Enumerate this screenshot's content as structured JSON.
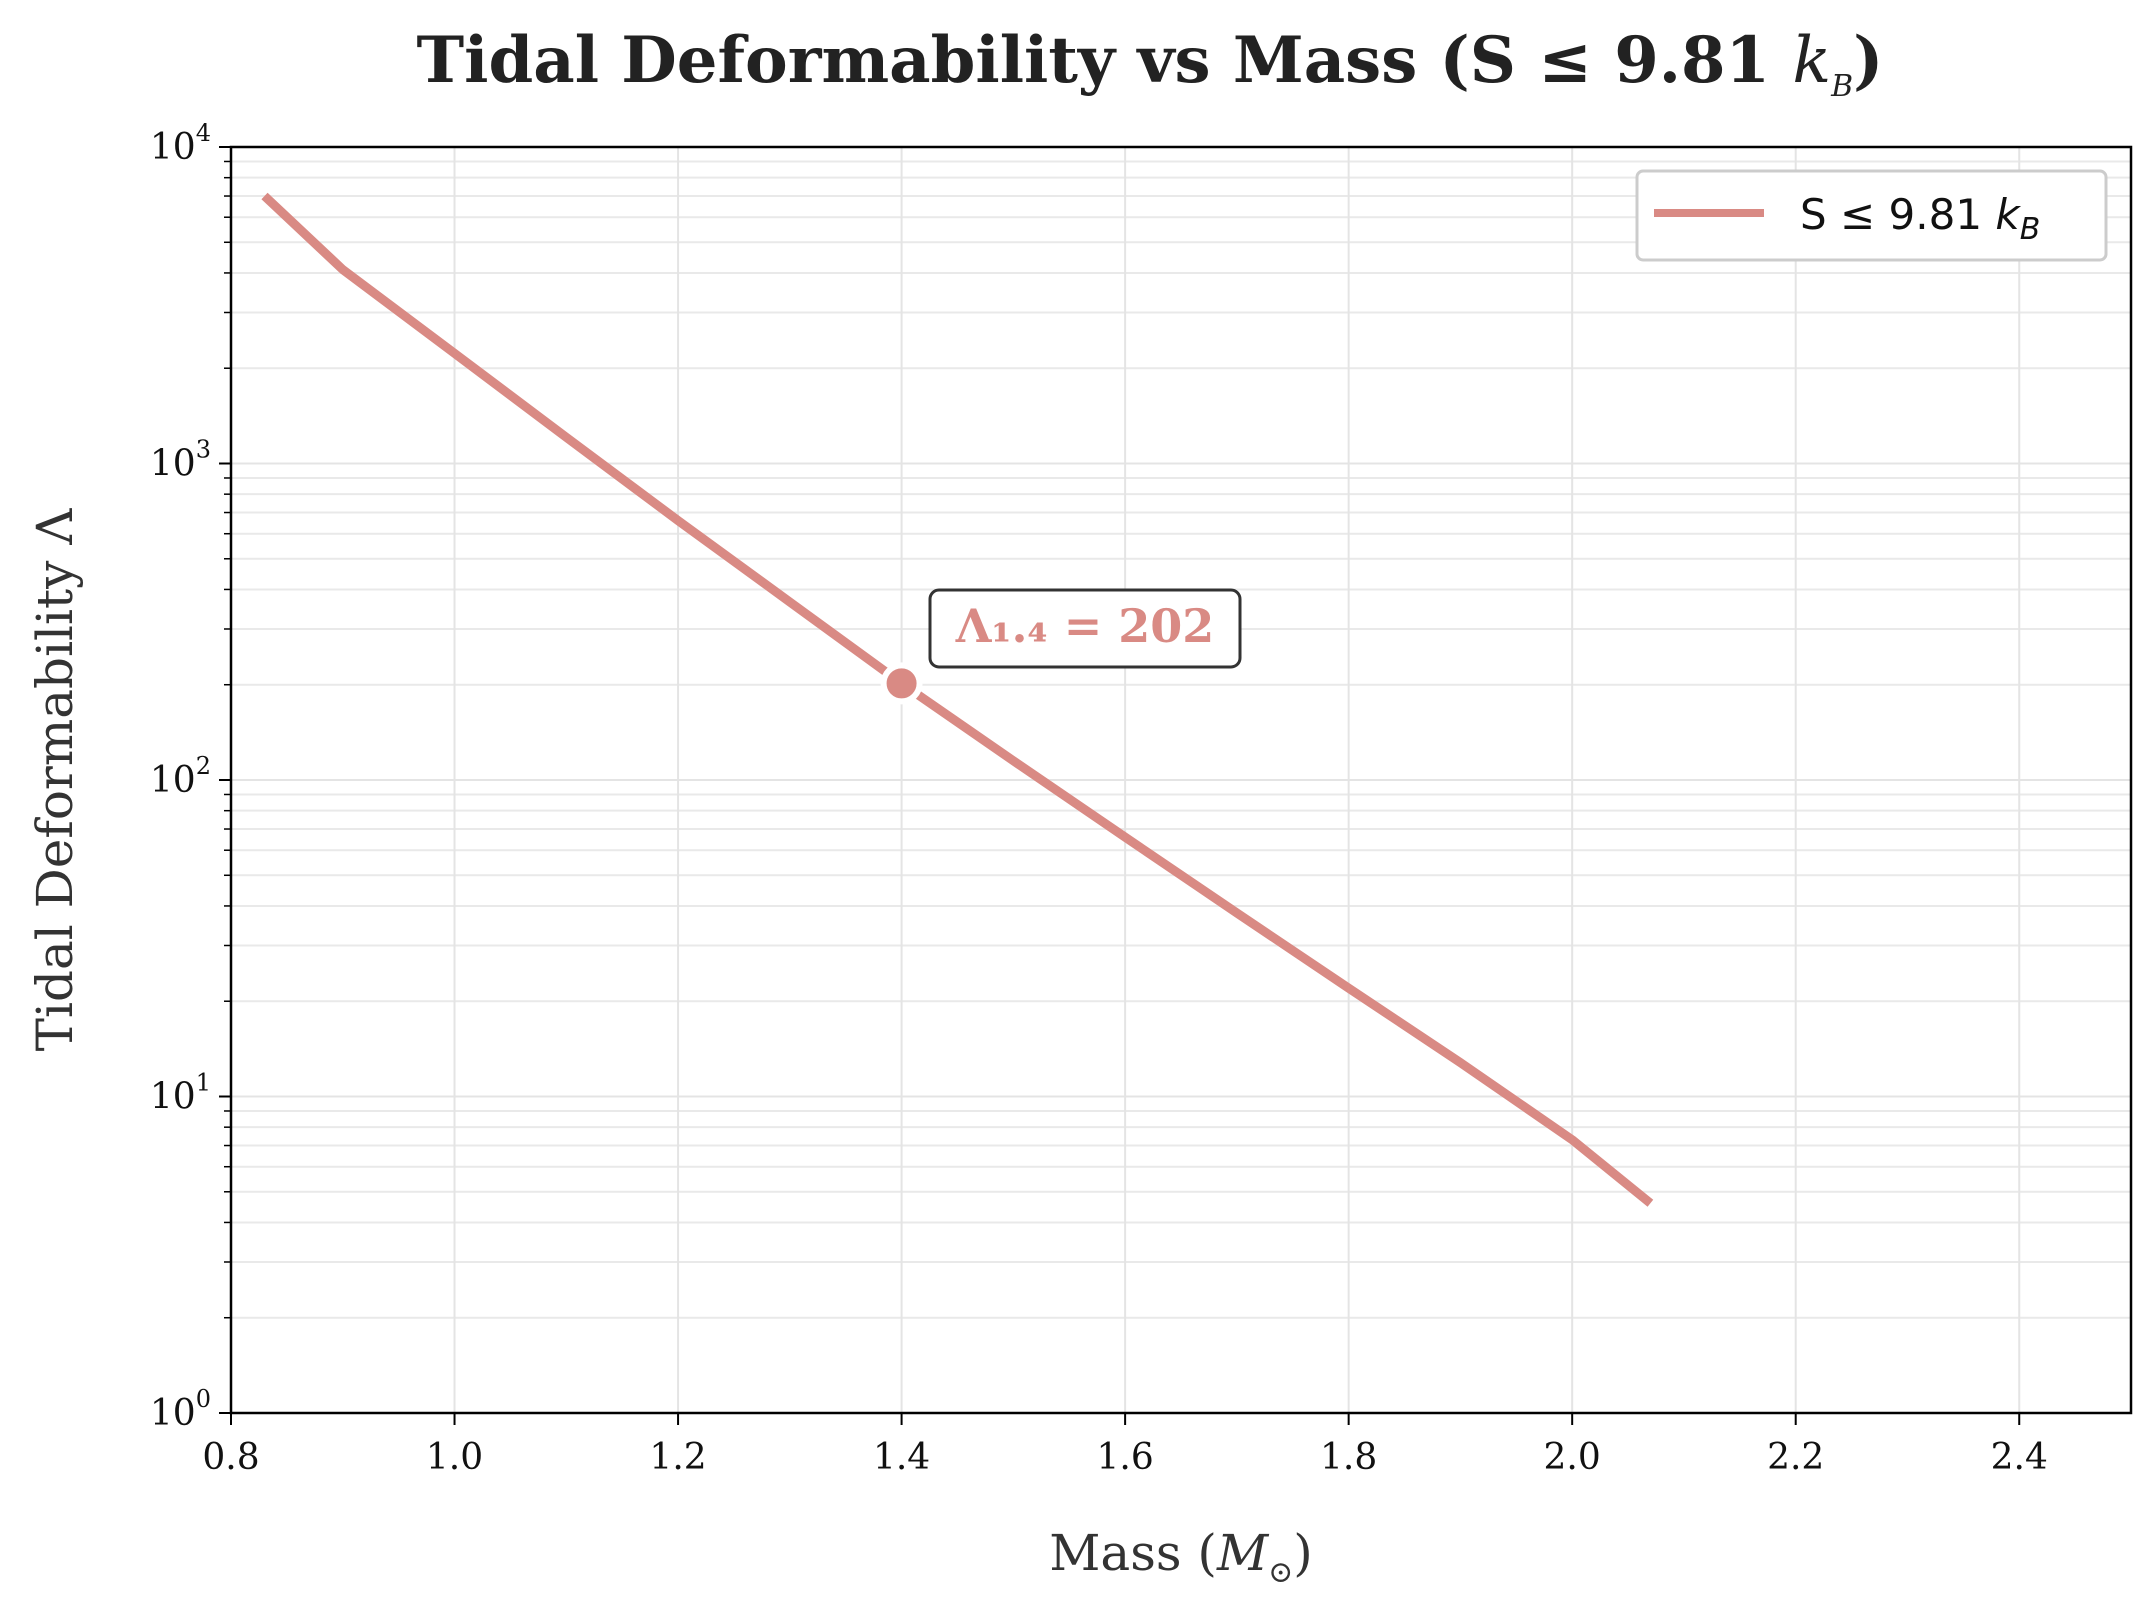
{
  "chart_data": {
    "type": "line",
    "title": "Tidal Deformability vs Mass (S ≤ 9.81 k_B)",
    "title_prefix": "Tidal Deformability vs Mass (S ≤ 9.81 ",
    "title_math": "k",
    "title_sub": "B",
    "title_suffix": ")",
    "xlabel": "Mass (M☉)",
    "xlabel_prefix": "Mass (",
    "xlabel_math": "M",
    "xlabel_sub": "⊙",
    "xlabel_suffix": ")",
    "ylabel": "Tidal Deformability Λ",
    "xlim": [
      0.8,
      2.5
    ],
    "ylim": [
      1,
      10000
    ],
    "yscale": "log",
    "grid": true,
    "legend_position": "top-right",
    "x_ticks": [
      "0.8",
      "1.0",
      "1.2",
      "1.4",
      "1.6",
      "1.8",
      "2.0",
      "2.2",
      "2.4"
    ],
    "y_ticks": [
      {
        "base": "10",
        "exp": "0"
      },
      {
        "base": "10",
        "exp": "1"
      },
      {
        "base": "10",
        "exp": "2"
      },
      {
        "base": "10",
        "exp": "3"
      },
      {
        "base": "10",
        "exp": "4"
      }
    ],
    "series": [
      {
        "name": "S ≤ 9.81 k_B",
        "legend_prefix": "S ≤ 9.81 ",
        "legend_math": "k",
        "legend_sub": "B",
        "color": "#d98a84",
        "x": [
          0.83,
          0.9,
          1.0,
          1.1,
          1.2,
          1.3,
          1.4,
          1.5,
          1.6,
          1.7,
          1.8,
          1.9,
          2.0,
          2.07
        ],
        "y": [
          7000,
          4100,
          2230,
          1210,
          660,
          365,
          202,
          115,
          66,
          38,
          22,
          12.8,
          7.3,
          4.6
        ]
      }
    ],
    "marker": {
      "x": 1.4,
      "y": 202,
      "color": "#d98a84"
    },
    "annotation": {
      "text": "Λ₁.₄ = 202",
      "color": "#d98a84"
    }
  }
}
